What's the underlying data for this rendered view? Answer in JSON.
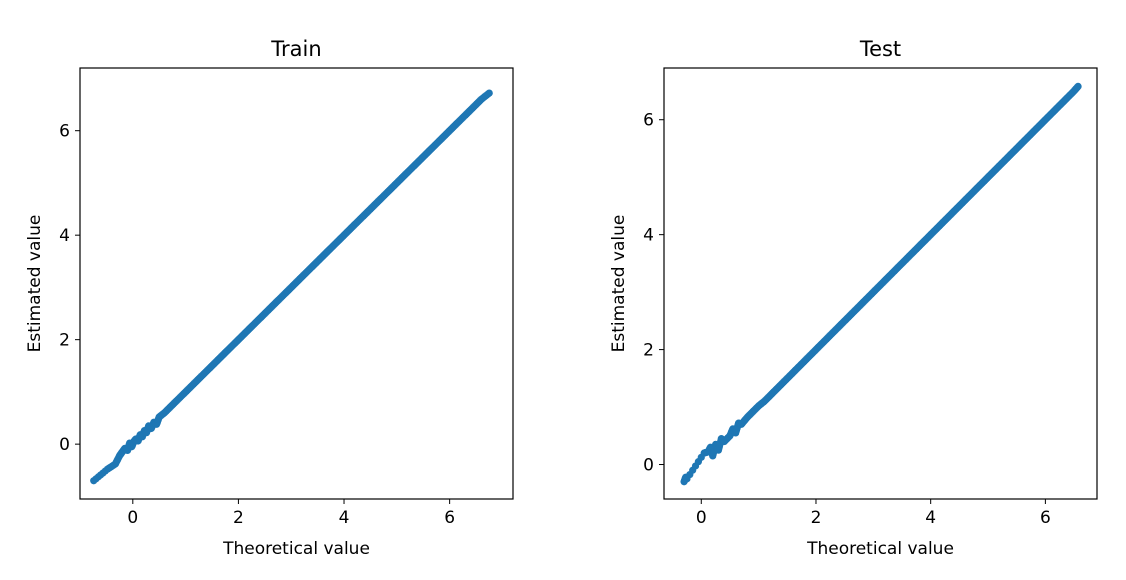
{
  "chart_data": [
    {
      "type": "scatter",
      "title": "Train",
      "xlabel": "Theoretical value",
      "ylabel": "Estimated value",
      "xlim": [
        -1.0,
        7.2
      ],
      "ylim": [
        -1.05,
        7.2
      ],
      "xticks": [
        0,
        2,
        4,
        6
      ],
      "yticks": [
        0,
        2,
        4,
        6
      ],
      "xtick_labels": [
        "0",
        "2",
        "4",
        "6"
      ],
      "ytick_labels": [
        "0",
        "2",
        "4",
        "6"
      ],
      "grid": false,
      "color": "#1f77b4",
      "series": [
        {
          "x": [
            -0.74,
            -0.48,
            -0.33,
            -0.25,
            -0.2,
            -0.15,
            -0.1,
            -0.06,
            -0.02,
            0.02,
            0.06,
            0.1,
            0.14,
            0.18,
            0.22,
            0.26,
            0.3,
            0.35,
            0.4,
            0.45,
            0.5,
            0.6,
            0.7,
            0.8,
            0.9,
            1.0,
            1.1,
            1.2,
            1.3,
            1.4,
            1.5,
            1.6,
            1.7,
            1.8,
            1.9,
            2.0,
            2.1,
            2.2,
            2.3,
            2.4,
            2.5,
            2.6,
            2.7,
            2.8,
            2.9,
            3.0,
            3.1,
            3.2,
            3.3,
            3.4,
            3.5,
            3.6,
            3.7,
            3.8,
            3.9,
            4.0,
            4.1,
            4.2,
            4.3,
            4.4,
            4.5,
            4.6,
            4.7,
            4.8,
            4.9,
            5.0,
            5.1,
            5.2,
            5.3,
            5.4,
            5.5,
            5.6,
            5.7,
            5.8,
            5.9,
            6.0,
            6.1,
            6.2,
            6.3,
            6.4,
            6.5,
            6.6,
            6.75
          ],
          "y": [
            -0.7,
            -0.48,
            -0.38,
            -0.22,
            -0.15,
            -0.08,
            -0.12,
            0.02,
            -0.05,
            0.05,
            0.1,
            0.06,
            0.18,
            0.14,
            0.26,
            0.22,
            0.35,
            0.3,
            0.42,
            0.38,
            0.52,
            0.6,
            0.7,
            0.8,
            0.9,
            1.0,
            1.1,
            1.2,
            1.3,
            1.4,
            1.5,
            1.6,
            1.7,
            1.8,
            1.9,
            2.0,
            2.1,
            2.2,
            2.3,
            2.4,
            2.5,
            2.6,
            2.7,
            2.8,
            2.9,
            3.0,
            3.1,
            3.2,
            3.3,
            3.4,
            3.5,
            3.6,
            3.7,
            3.8,
            3.9,
            4.0,
            4.1,
            4.2,
            4.3,
            4.4,
            4.5,
            4.6,
            4.7,
            4.8,
            4.9,
            5.0,
            5.1,
            5.2,
            5.3,
            5.4,
            5.5,
            5.6,
            5.7,
            5.8,
            5.9,
            6.0,
            6.1,
            6.2,
            6.3,
            6.4,
            6.5,
            6.6,
            6.72
          ]
        }
      ]
    },
    {
      "type": "scatter",
      "title": "Test",
      "xlabel": "Theoretical value",
      "ylabel": "Estimated value",
      "xlim": [
        -0.65,
        6.9
      ],
      "ylim": [
        -0.6,
        6.9
      ],
      "xticks": [
        0,
        2,
        4,
        6
      ],
      "yticks": [
        0,
        2,
        4,
        6
      ],
      "xtick_labels": [
        "0",
        "2",
        "4",
        "6"
      ],
      "ytick_labels": [
        "0",
        "2",
        "4",
        "6"
      ],
      "grid": false,
      "color": "#1f77b4",
      "series": [
        {
          "x": [
            -0.3,
            -0.27,
            -0.25,
            0.05,
            0.12,
            0.16,
            0.2,
            0.25,
            0.3,
            0.35,
            0.4,
            0.5,
            0.55,
            0.6,
            0.65,
            0.7,
            0.8,
            0.9,
            1.0,
            1.1,
            1.2,
            1.3,
            1.4,
            1.5,
            1.6,
            1.7,
            1.8,
            1.9,
            2.0,
            2.1,
            2.2,
            2.3,
            2.4,
            2.5,
            2.6,
            2.7,
            2.8,
            2.9,
            3.0,
            3.1,
            3.2,
            3.3,
            3.4,
            3.5,
            3.6,
            3.7,
            3.8,
            3.9,
            4.0,
            4.1,
            4.2,
            4.3,
            4.4,
            4.5,
            4.6,
            4.7,
            4.8,
            4.9,
            5.0,
            5.1,
            5.2,
            5.3,
            5.4,
            5.5,
            5.6,
            5.7,
            5.8,
            5.9,
            6.0,
            6.1,
            6.2,
            6.3,
            6.4,
            6.5,
            6.57
          ],
          "y": [
            -0.3,
            -0.22,
            -0.25,
            0.2,
            0.22,
            0.3,
            0.15,
            0.35,
            0.25,
            0.45,
            0.4,
            0.5,
            0.62,
            0.55,
            0.72,
            0.7,
            0.82,
            0.92,
            1.02,
            1.1,
            1.2,
            1.3,
            1.4,
            1.5,
            1.6,
            1.7,
            1.8,
            1.9,
            2.0,
            2.1,
            2.2,
            2.3,
            2.4,
            2.5,
            2.6,
            2.7,
            2.8,
            2.9,
            3.0,
            3.1,
            3.2,
            3.3,
            3.4,
            3.5,
            3.6,
            3.7,
            3.8,
            3.9,
            4.0,
            4.1,
            4.2,
            4.3,
            4.4,
            4.5,
            4.6,
            4.7,
            4.8,
            4.9,
            5.0,
            5.1,
            5.2,
            5.3,
            5.4,
            5.5,
            5.6,
            5.7,
            5.8,
            5.9,
            6.0,
            6.1,
            6.2,
            6.3,
            6.4,
            6.5,
            6.58
          ]
        }
      ]
    }
  ]
}
